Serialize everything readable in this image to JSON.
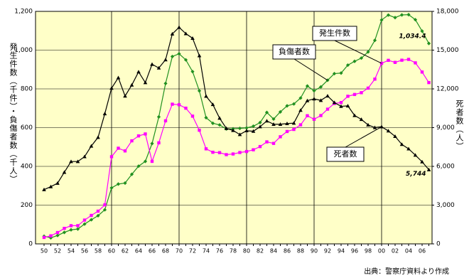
{
  "chart_data": {
    "type": "line",
    "y_label": "発生件数（千件）・負傷者数（千人）",
    "y2_label": "死者数（人）",
    "source": "出典：警察庁資料より作成",
    "categories": [
      "50",
      null,
      "52",
      null,
      "54",
      null,
      "56",
      null,
      "58",
      null,
      "60",
      null,
      "62",
      null,
      "64",
      null,
      "66",
      null,
      "68",
      null,
      "70",
      null,
      "72",
      null,
      "74",
      null,
      "76",
      null,
      "78",
      null,
      "80",
      null,
      "82",
      null,
      "84",
      null,
      "86",
      null,
      "88",
      null,
      "90",
      null,
      "92",
      null,
      "94",
      null,
      "96",
      null,
      "98",
      null,
      "00",
      null,
      "02",
      null,
      "04",
      null,
      "06",
      null
    ],
    "ylim": [
      0,
      1200
    ],
    "yticks": [
      0,
      200,
      400,
      600,
      800,
      {
        "value": 1000,
        "label": "1,000"
      },
      {
        "value": 1200,
        "label": "1,200"
      }
    ],
    "y2lim": [
      0,
      18000
    ],
    "y2ticks": [
      0,
      {
        "value": 3000,
        "label": "3,000"
      },
      {
        "value": 6000,
        "label": "6,000"
      },
      {
        "value": 9000,
        "label": "9,000"
      },
      {
        "value": 12000,
        "label": "12,000"
      },
      {
        "value": 15000,
        "label": "15,000"
      },
      {
        "value": 18000,
        "label": "18,000"
      }
    ],
    "grid": true,
    "series": [
      {
        "name": "負傷者数",
        "color": "#209020",
        "marker": "diamond",
        "values": [
          39.5,
          31.3,
          43.3,
          59.3,
          72.4,
          76.5,
          102.1,
          124.5,
          145.4,
          175.9,
          289.2,
          308.7,
          313.8,
          359.1,
          401.1,
          425.7,
          517.8,
          655.4,
          828.1,
          967.0,
          981.1,
          949.7,
          889.2,
          789.9,
          651.4,
          622.5,
          613.9,
          593.2,
          594.1,
          596.3,
          598.7,
          607.3,
          626.2,
          678.4,
          644.3,
          681.3,
          712.3,
          722.2,
          752.8,
          814.8,
          790.3,
          810.2,
          844.4,
          878.6,
          881.7,
          922.7,
          942.2,
          958.9,
          990.7,
          1050.4,
          1155.7,
          1181.0,
          1168.0,
          1181.7,
          1183.1,
          1157.1,
          1098.2,
          1034.4
        ],
        "value_labels": [
          null,
          null,
          null,
          null,
          null,
          null,
          null,
          null,
          null,
          null,
          null,
          null,
          null,
          null,
          null,
          null,
          null,
          null,
          null,
          null,
          null,
          null,
          null,
          null,
          null,
          null,
          null,
          null,
          null,
          null,
          null,
          null,
          null,
          null,
          null,
          null,
          null,
          null,
          null,
          null,
          null,
          null,
          null,
          null,
          null,
          null,
          null,
          null,
          null,
          null,
          null,
          null,
          null,
          null,
          null,
          null,
          null,
          "1,034.4"
        ]
      },
      {
        "name": "発生件数",
        "color": "#ff00ff",
        "marker": "square",
        "values": [
          33.2,
          41.4,
          58.5,
          80.0,
          93.9,
          93.9,
          122.7,
          146.8,
          168.8,
          201.3,
          449.9,
          493.7,
          479.8,
          531.9,
          557.2,
          567.3,
          425.9,
          521.5,
          635.1,
          720.9,
          718.1,
          700.3,
          659.3,
          586.7,
          490.5,
          472.9,
          471.0,
          460.6,
          464.0,
          471.6,
          476.7,
          485.6,
          502.3,
          526.4,
          518.6,
          552.8,
          580.0,
          590.7,
          614.5,
          661.4,
          643.1,
          662.4,
          695.3,
          724.7,
          729.5,
          761.8,
          771.1,
          780.4,
          803.9,
          850.4,
          931.9,
          947.3,
          936.7,
          948.0,
          952.2,
          934.3,
          886.9,
          832.5
        ],
        "value_labels": [
          null,
          null,
          null,
          null,
          null,
          null,
          null,
          null,
          null,
          null,
          null,
          null,
          null,
          null,
          null,
          null,
          null,
          null,
          null,
          null,
          null,
          null,
          null,
          null,
          null,
          null,
          null,
          null,
          null,
          null,
          null,
          null,
          null,
          null,
          null,
          null,
          null,
          null,
          null,
          null,
          null,
          null,
          null,
          null,
          null,
          null,
          null,
          null,
          null,
          null,
          null,
          null,
          null,
          null,
          null,
          null,
          null,
          null
        ]
      },
      {
        "name": "死者数",
        "color": "#000000",
        "marker": "triangle",
        "axis": "y2",
        "values": [
          4202,
          4429,
          4696,
          5544,
          6374,
          6379,
          6751,
          7575,
          8248,
          10079,
          12055,
          12865,
          11445,
          12301,
          13318,
          12484,
          13904,
          13618,
          14256,
          16257,
          16765,
          16278,
          15918,
          14574,
          11432,
          10792,
          9734,
          8945,
          8783,
          8466,
          8760,
          8719,
          9073,
          9520,
          9262,
          9261,
          9317,
          9347,
          10344,
          11086,
          11227,
          11109,
          11452,
          10942,
          10649,
          10684,
          9942,
          9640,
          9211,
          9006,
          9066,
          8747,
          8326,
          7702,
          7358,
          6871,
          6352,
          5744
        ],
        "value_labels": [
          null,
          null,
          null,
          null,
          null,
          null,
          null,
          null,
          null,
          null,
          null,
          null,
          null,
          null,
          null,
          null,
          null,
          null,
          null,
          null,
          null,
          null,
          null,
          null,
          null,
          null,
          null,
          null,
          null,
          null,
          null,
          null,
          null,
          null,
          null,
          null,
          null,
          null,
          null,
          null,
          null,
          null,
          null,
          null,
          null,
          null,
          null,
          null,
          null,
          null,
          null,
          null,
          null,
          null,
          null,
          null,
          null,
          "5,744"
        ]
      }
    ]
  }
}
